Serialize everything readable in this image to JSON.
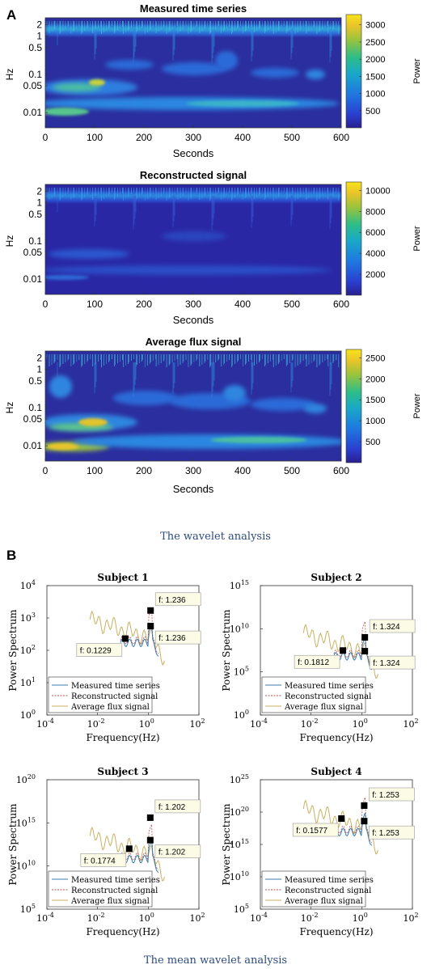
{
  "panel_a_letter": "A",
  "panel_b_letter": "B",
  "caption_a": "The wavelet analysis",
  "caption_b": "The mean wavelet analysis",
  "colors": {
    "low": "#2a1f8f",
    "mid": "#1ea5c8",
    "high": "#f5dc16"
  },
  "chart_data": [
    {
      "type": "heatmap",
      "title": "Measured time series",
      "xlabel": "Seconds",
      "ylabel": "Hz",
      "xlim": [
        0,
        600
      ],
      "xticks": [
        "0",
        "100",
        "200",
        "300",
        "400",
        "500",
        "600"
      ],
      "yscale": "log",
      "yticks": [
        {
          "v": 2,
          "label": "2"
        },
        {
          "v": 1,
          "label": "1"
        },
        {
          "v": 0.5,
          "label": "0.5"
        },
        {
          "v": 0.1,
          "label": "0.1"
        },
        {
          "v": 0.05,
          "label": "0.05"
        },
        {
          "v": 0.01,
          "label": "0.01"
        }
      ],
      "colorbar_label": "Power",
      "colorbar_ticks": [
        {
          "v": 500,
          "label": "500"
        },
        {
          "v": 1000,
          "label": "1000"
        },
        {
          "v": 1500,
          "label": "1500"
        },
        {
          "v": 2000,
          "label": "2000"
        },
        {
          "v": 2500,
          "label": "2500"
        },
        {
          "v": 3000,
          "label": "3000"
        }
      ],
      "colorbar_range": [
        0,
        3300
      ]
    },
    {
      "type": "heatmap",
      "title": "Reconstructed signal",
      "xlabel": "Seconds",
      "ylabel": "Hz",
      "xlim": [
        0,
        600
      ],
      "xticks": [
        "0",
        "100",
        "200",
        "300",
        "400",
        "500",
        "600"
      ],
      "yscale": "log",
      "yticks": [
        {
          "v": 2,
          "label": "2"
        },
        {
          "v": 1,
          "label": "1"
        },
        {
          "v": 0.5,
          "label": "0.5"
        },
        {
          "v": 0.1,
          "label": "0.1"
        },
        {
          "v": 0.05,
          "label": "0.05"
        },
        {
          "v": 0.01,
          "label": "0.01"
        }
      ],
      "colorbar_label": "Power",
      "colorbar_ticks": [
        {
          "v": 2000,
          "label": "2000"
        },
        {
          "v": 4000,
          "label": "4000"
        },
        {
          "v": 6000,
          "label": "6000"
        },
        {
          "v": 8000,
          "label": "8000"
        },
        {
          "v": 10000,
          "label": "10000"
        }
      ],
      "colorbar_range": [
        0,
        10800
      ]
    },
    {
      "type": "heatmap",
      "title": "Average flux signal",
      "xlabel": "Seconds",
      "ylabel": "Hz",
      "xlim": [
        0,
        600
      ],
      "xticks": [
        "0",
        "100",
        "200",
        "300",
        "400",
        "500",
        "600"
      ],
      "yscale": "log",
      "yticks": [
        {
          "v": 2,
          "label": "2"
        },
        {
          "v": 1,
          "label": "1"
        },
        {
          "v": 0.5,
          "label": "0.5"
        },
        {
          "v": 0.1,
          "label": "0.1"
        },
        {
          "v": 0.05,
          "label": "0.05"
        },
        {
          "v": 0.01,
          "label": "0.01"
        }
      ],
      "colorbar_label": "Power",
      "colorbar_ticks": [
        {
          "v": 500,
          "label": "500"
        },
        {
          "v": 1000,
          "label": "1000"
        },
        {
          "v": 1500,
          "label": "1500"
        },
        {
          "v": 2000,
          "label": "2000"
        },
        {
          "v": 2500,
          "label": "2500"
        }
      ],
      "colorbar_range": [
        0,
        2700
      ]
    },
    {
      "type": "line",
      "title": "Subject 1",
      "xlabel": "Frequency(Hz)",
      "ylabel": "Power Spectrum",
      "xscale": "log",
      "yscale": "log",
      "xticks": [
        {
          "exp": -4
        },
        {
          "exp": -2
        },
        {
          "exp": 0
        },
        {
          "exp": 2
        }
      ],
      "yticks": [
        {
          "exp": 0
        },
        {
          "exp": 1
        },
        {
          "exp": 2
        },
        {
          "exp": 3
        },
        {
          "exp": 4
        }
      ],
      "tick_base": "10",
      "legend": [
        "Measured time series",
        "Reconstructed signal",
        "Average flux signal"
      ],
      "annotations": [
        {
          "label": "f: 0.1229",
          "x": 0.1229,
          "y": 230
        },
        {
          "label": "f: 1.236",
          "x": 1.236,
          "y": 1700
        },
        {
          "label": "f: 1.236",
          "x": 1.236,
          "y": 560
        }
      ]
    },
    {
      "type": "line",
      "title": "Subject 2",
      "xlabel": "Frequency(Hz)",
      "ylabel": "Power Spectrum",
      "xscale": "log",
      "yscale": "log",
      "xticks": [
        {
          "exp": -4
        },
        {
          "exp": -2
        },
        {
          "exp": 0
        },
        {
          "exp": 2
        }
      ],
      "yticks": [
        {
          "exp": 0
        },
        {
          "exp": 5
        },
        {
          "exp": 10
        },
        {
          "exp": 15
        }
      ],
      "tick_base": "10",
      "legend": [
        "Measured time series",
        "Reconstructed signal",
        "Average flux signal"
      ],
      "annotations": [
        {
          "label": "f: 0.1812",
          "x": 0.1812,
          "y": 30000000.0
        },
        {
          "label": "f: 1.324",
          "x": 1.324,
          "y": 1000000000.0
        },
        {
          "label": "f: 1.324",
          "x": 1.324,
          "y": 25000000.0
        }
      ]
    },
    {
      "type": "line",
      "title": "Subject 3",
      "xlabel": "Frequency(Hz)",
      "ylabel": "Power Spectrum",
      "xscale": "log",
      "yscale": "log",
      "xticks": [
        {
          "exp": -4
        },
        {
          "exp": -2
        },
        {
          "exp": 0
        },
        {
          "exp": 2
        }
      ],
      "yticks": [
        {
          "exp": 5
        },
        {
          "exp": 10
        },
        {
          "exp": 15
        },
        {
          "exp": 20
        }
      ],
      "tick_base": "10",
      "legend": [
        "Measured time series",
        "Reconstructed signal",
        "Average flux signal"
      ],
      "annotations": [
        {
          "label": "f: 0.1774",
          "x": 0.1774,
          "y": 1000000000000.0
        },
        {
          "label": "f: 1.202",
          "x": 1.202,
          "y": 4000000000000000.0
        },
        {
          "label": "f: 1.202",
          "x": 1.202,
          "y": 10000000000000.0
        }
      ]
    },
    {
      "type": "line",
      "title": "Subject 4",
      "xlabel": "Frequency(Hz)",
      "ylabel": "Power Spectrum",
      "xscale": "log",
      "yscale": "log",
      "xticks": [
        {
          "exp": -4
        },
        {
          "exp": -2
        },
        {
          "exp": 0
        },
        {
          "exp": 2
        }
      ],
      "yticks": [
        {
          "exp": 5
        },
        {
          "exp": 10
        },
        {
          "exp": 15
        },
        {
          "exp": 20
        },
        {
          "exp": 25
        }
      ],
      "tick_base": "10",
      "legend": [
        "Measured time series",
        "Reconstructed signal",
        "Average flux signal"
      ],
      "annotations": [
        {
          "label": "f: 0.1577",
          "x": 0.1577,
          "y": 1e+19
        },
        {
          "label": "f: 1.253",
          "x": 1.253,
          "y": 1e+21
        },
        {
          "label": "f: 1.253",
          "x": 1.253,
          "y": 4e+18
        }
      ]
    }
  ]
}
